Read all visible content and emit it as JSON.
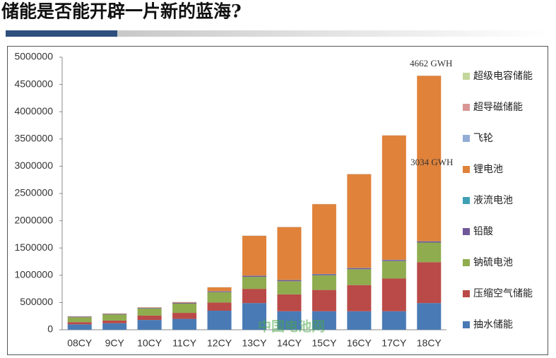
{
  "page_title": "储能是否能开辟一片新的蓝海?",
  "watermark": "中国电池网",
  "chart_data": {
    "type": "stacked_bar",
    "categories": [
      "08CY",
      "9CY",
      "10CY",
      "11CY",
      "12CY",
      "13CY",
      "14CY",
      "15CY",
      "16CY",
      "17CY",
      "18CY"
    ],
    "series": [
      {
        "name": "抽水储能",
        "color": "#4a7ab5",
        "values": [
          100000,
          120000,
          180000,
          200000,
          350000,
          490000,
          340000,
          340000,
          340000,
          340000,
          490000
        ]
      },
      {
        "name": "压缩空气储能",
        "color": "#b94a48",
        "values": [
          40000,
          50000,
          80000,
          110000,
          150000,
          260000,
          310000,
          390000,
          480000,
          600000,
          750000
        ]
      },
      {
        "name": "钠硫电池",
        "color": "#8fac4f",
        "values": [
          90000,
          110000,
          130000,
          170000,
          190000,
          220000,
          240000,
          270000,
          290000,
          320000,
          360000
        ]
      },
      {
        "name": "铅酸",
        "color": "#6f579a",
        "values": [
          10000,
          10000,
          10000,
          15000,
          15000,
          20000,
          20000,
          20000,
          20000,
          20000,
          20000
        ]
      },
      {
        "name": "液流电池",
        "color": "#3fa0b5",
        "values": [
          1000,
          1000,
          2000,
          2000,
          3000,
          3000,
          3000,
          4000,
          4000,
          4000,
          4000
        ]
      },
      {
        "name": "锂电池",
        "color": "#e0823a",
        "values": [
          4000,
          6000,
          8000,
          10000,
          70000,
          730000,
          970000,
          1280000,
          1720000,
          2280000,
          3034000
        ]
      },
      {
        "name": "飞轮",
        "color": "#93acd6",
        "values": [
          2000,
          2000,
          2000,
          2000,
          2000,
          2000,
          2000,
          2000,
          2000,
          2000,
          2000
        ]
      },
      {
        "name": "超导磁储能",
        "color": "#d99694",
        "values": [
          1000,
          1000,
          1000,
          1000,
          1000,
          1000,
          1000,
          1000,
          1000,
          1000,
          1000
        ]
      },
      {
        "name": "超级电容储能",
        "color": "#c3d69b",
        "values": [
          1000,
          1000,
          1000,
          1000,
          1000,
          1000,
          1000,
          1000,
          1000,
          1000,
          1000
        ]
      }
    ],
    "annotations": [
      "4662 GWH",
      "3034 GWH"
    ],
    "ylim": [
      0,
      5000000
    ],
    "yticks": [
      0,
      500000,
      1000000,
      1500000,
      2000000,
      2500000,
      3000000,
      3500000,
      4000000,
      4500000,
      5000000
    ],
    "grid": false
  }
}
